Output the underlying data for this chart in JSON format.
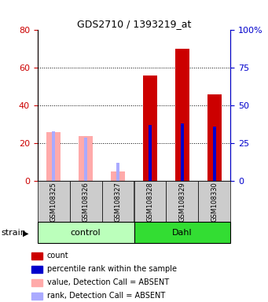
{
  "title": "GDS2710 / 1393219_at",
  "samples": [
    "GSM108325",
    "GSM108326",
    "GSM108327",
    "GSM108328",
    "GSM108329",
    "GSM108330"
  ],
  "absent": [
    true,
    true,
    true,
    false,
    false,
    false
  ],
  "count_values": [
    26,
    24,
    5,
    56,
    70,
    46
  ],
  "rank_values": [
    33,
    29,
    12,
    37,
    38,
    36
  ],
  "ylim_left": [
    0,
    80
  ],
  "ylim_right": [
    0,
    100
  ],
  "yticks_left": [
    0,
    20,
    40,
    60,
    80
  ],
  "yticks_right": [
    0,
    25,
    50,
    75,
    100
  ],
  "ytick_labels_right": [
    "0",
    "25",
    "50",
    "75",
    "100%"
  ],
  "color_red": "#cc0000",
  "color_blue": "#0000cc",
  "color_pink": "#ffaaaa",
  "color_lightblue": "#aaaaff",
  "color_gray_bg": "#cccccc",
  "color_control_bg": "#bbffbb",
  "color_dahl_bg": "#33dd33",
  "strain_label": "strain",
  "legend_items": [
    {
      "color": "#cc0000",
      "label": "count"
    },
    {
      "color": "#0000cc",
      "label": "percentile rank within the sample"
    },
    {
      "color": "#ffaaaa",
      "label": "value, Detection Call = ABSENT"
    },
    {
      "color": "#aaaaff",
      "label": "rank, Detection Call = ABSENT"
    }
  ]
}
